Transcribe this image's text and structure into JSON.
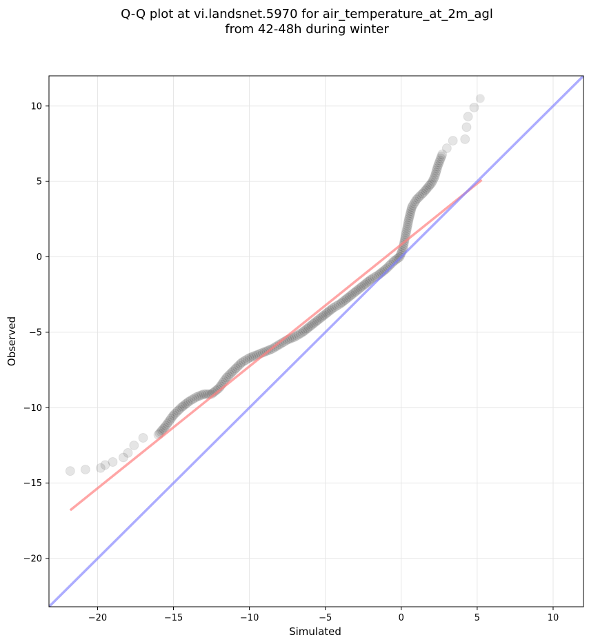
{
  "chart_data": {
    "type": "scatter",
    "title_lines": [
      "Q-Q plot at vi.landsnet.5970 for air_temperature_at_2m_agl",
      "from 42-48h during winter"
    ],
    "xlabel": "Simulated",
    "ylabel": "Observed",
    "xlim": [
      -23.2,
      12.0
    ],
    "ylim": [
      -23.2,
      12.0
    ],
    "xticks": [
      -20,
      -15,
      -10,
      -5,
      0,
      5,
      10
    ],
    "yticks": [
      -20,
      -15,
      -10,
      -5,
      0,
      5,
      10
    ],
    "xtick_labels": [
      "−20",
      "−15",
      "−10",
      "−5",
      "0",
      "5",
      "10"
    ],
    "ytick_labels": [
      "−20",
      "−15",
      "−10",
      "−5",
      "0",
      "5",
      "10"
    ],
    "grid": true,
    "colors": {
      "points": "#000000",
      "fit_line": "#ff8080",
      "identity_line": "#8080ff",
      "grid": "#e6e6e6"
    },
    "quantile_curve": [
      [
        -21.8,
        -14.2
      ],
      [
        -19.8,
        -14.0
      ],
      [
        -19.5,
        -13.8
      ],
      [
        -19.0,
        -13.6
      ],
      [
        -18.3,
        -13.3
      ],
      [
        -18.0,
        -13.0
      ],
      [
        -17.6,
        -12.5
      ],
      [
        -17.0,
        -12.0
      ],
      [
        -16.0,
        -11.8
      ],
      [
        -15.5,
        -11.2
      ],
      [
        -15.0,
        -10.5
      ],
      [
        -14.5,
        -10.0
      ],
      [
        -14.0,
        -9.6
      ],
      [
        -13.5,
        -9.3
      ],
      [
        -13.0,
        -9.1
      ],
      [
        -12.5,
        -9.1
      ],
      [
        -12.0,
        -8.7
      ],
      [
        -11.5,
        -8.0
      ],
      [
        -11.0,
        -7.5
      ],
      [
        -10.5,
        -7.0
      ],
      [
        -10.0,
        -6.7
      ],
      [
        -9.5,
        -6.5
      ],
      [
        -9.0,
        -6.3
      ],
      [
        -8.5,
        -6.1
      ],
      [
        -8.0,
        -5.8
      ],
      [
        -7.5,
        -5.5
      ],
      [
        -7.0,
        -5.3
      ],
      [
        -6.5,
        -5.0
      ],
      [
        -6.0,
        -4.6
      ],
      [
        -5.5,
        -4.2
      ],
      [
        -5.0,
        -3.8
      ],
      [
        -4.5,
        -3.4
      ],
      [
        -4.0,
        -3.1
      ],
      [
        -3.5,
        -2.7
      ],
      [
        -3.0,
        -2.3
      ],
      [
        -2.5,
        -1.9
      ],
      [
        -2.0,
        -1.5
      ],
      [
        -1.5,
        -1.2
      ],
      [
        -1.0,
        -0.8
      ],
      [
        -0.5,
        -0.3
      ],
      [
        -0.1,
        0.0
      ],
      [
        0.1,
        0.5
      ],
      [
        0.3,
        1.5
      ],
      [
        0.5,
        2.5
      ],
      [
        0.7,
        3.3
      ],
      [
        1.0,
        3.8
      ],
      [
        1.5,
        4.3
      ],
      [
        2.0,
        4.9
      ],
      [
        2.2,
        5.3
      ],
      [
        2.4,
        6.0
      ],
      [
        2.7,
        6.8
      ],
      [
        3.0,
        7.2
      ],
      [
        3.4,
        7.7
      ],
      [
        4.2,
        7.8
      ],
      [
        4.3,
        8.6
      ],
      [
        4.4,
        9.3
      ],
      [
        4.8,
        9.9
      ],
      [
        5.2,
        10.5
      ]
    ],
    "fit_line": [
      [
        -21.8,
        -16.8
      ],
      [
        5.3,
        5.1
      ]
    ],
    "identity_line": [
      [
        -23.2,
        -23.2
      ],
      [
        12.0,
        12.0
      ]
    ]
  }
}
